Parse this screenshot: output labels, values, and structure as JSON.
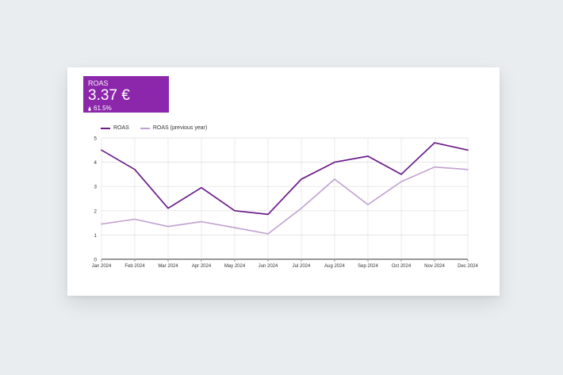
{
  "scorecard": {
    "label": "ROAS",
    "value": "3.37 €",
    "delta": "61.5%"
  },
  "colors": {
    "kpi_background": "#8c27ab",
    "series_current": "#6a1b8a",
    "series_previous": "#c1a0d1"
  },
  "chart_data": {
    "type": "line",
    "categories": [
      "Jan 2024",
      "Feb 2024",
      "Mar 2024",
      "Apr 2024",
      "May 2024",
      "Jun 2024",
      "Jul 2024",
      "Aug 2024",
      "Sep 2024",
      "Oct 2024",
      "Nov 2024",
      "Dec 2024"
    ],
    "series": [
      {
        "name": "ROAS",
        "color": "#6a1b8a",
        "values": [
          4.5,
          3.7,
          2.1,
          2.95,
          2.0,
          1.85,
          3.3,
          4.0,
          4.25,
          3.5,
          4.8,
          4.5
        ]
      },
      {
        "name": "ROAS (previous year)",
        "color": "#c1a0d1",
        "values": [
          1.45,
          1.65,
          1.35,
          1.55,
          1.3,
          1.05,
          2.1,
          3.3,
          2.25,
          3.2,
          3.8,
          3.7
        ]
      }
    ],
    "yticks": [
      0,
      1,
      2,
      3,
      4,
      5
    ],
    "ylim": [
      0,
      5
    ],
    "grid": true,
    "legend_position": "top-left"
  }
}
